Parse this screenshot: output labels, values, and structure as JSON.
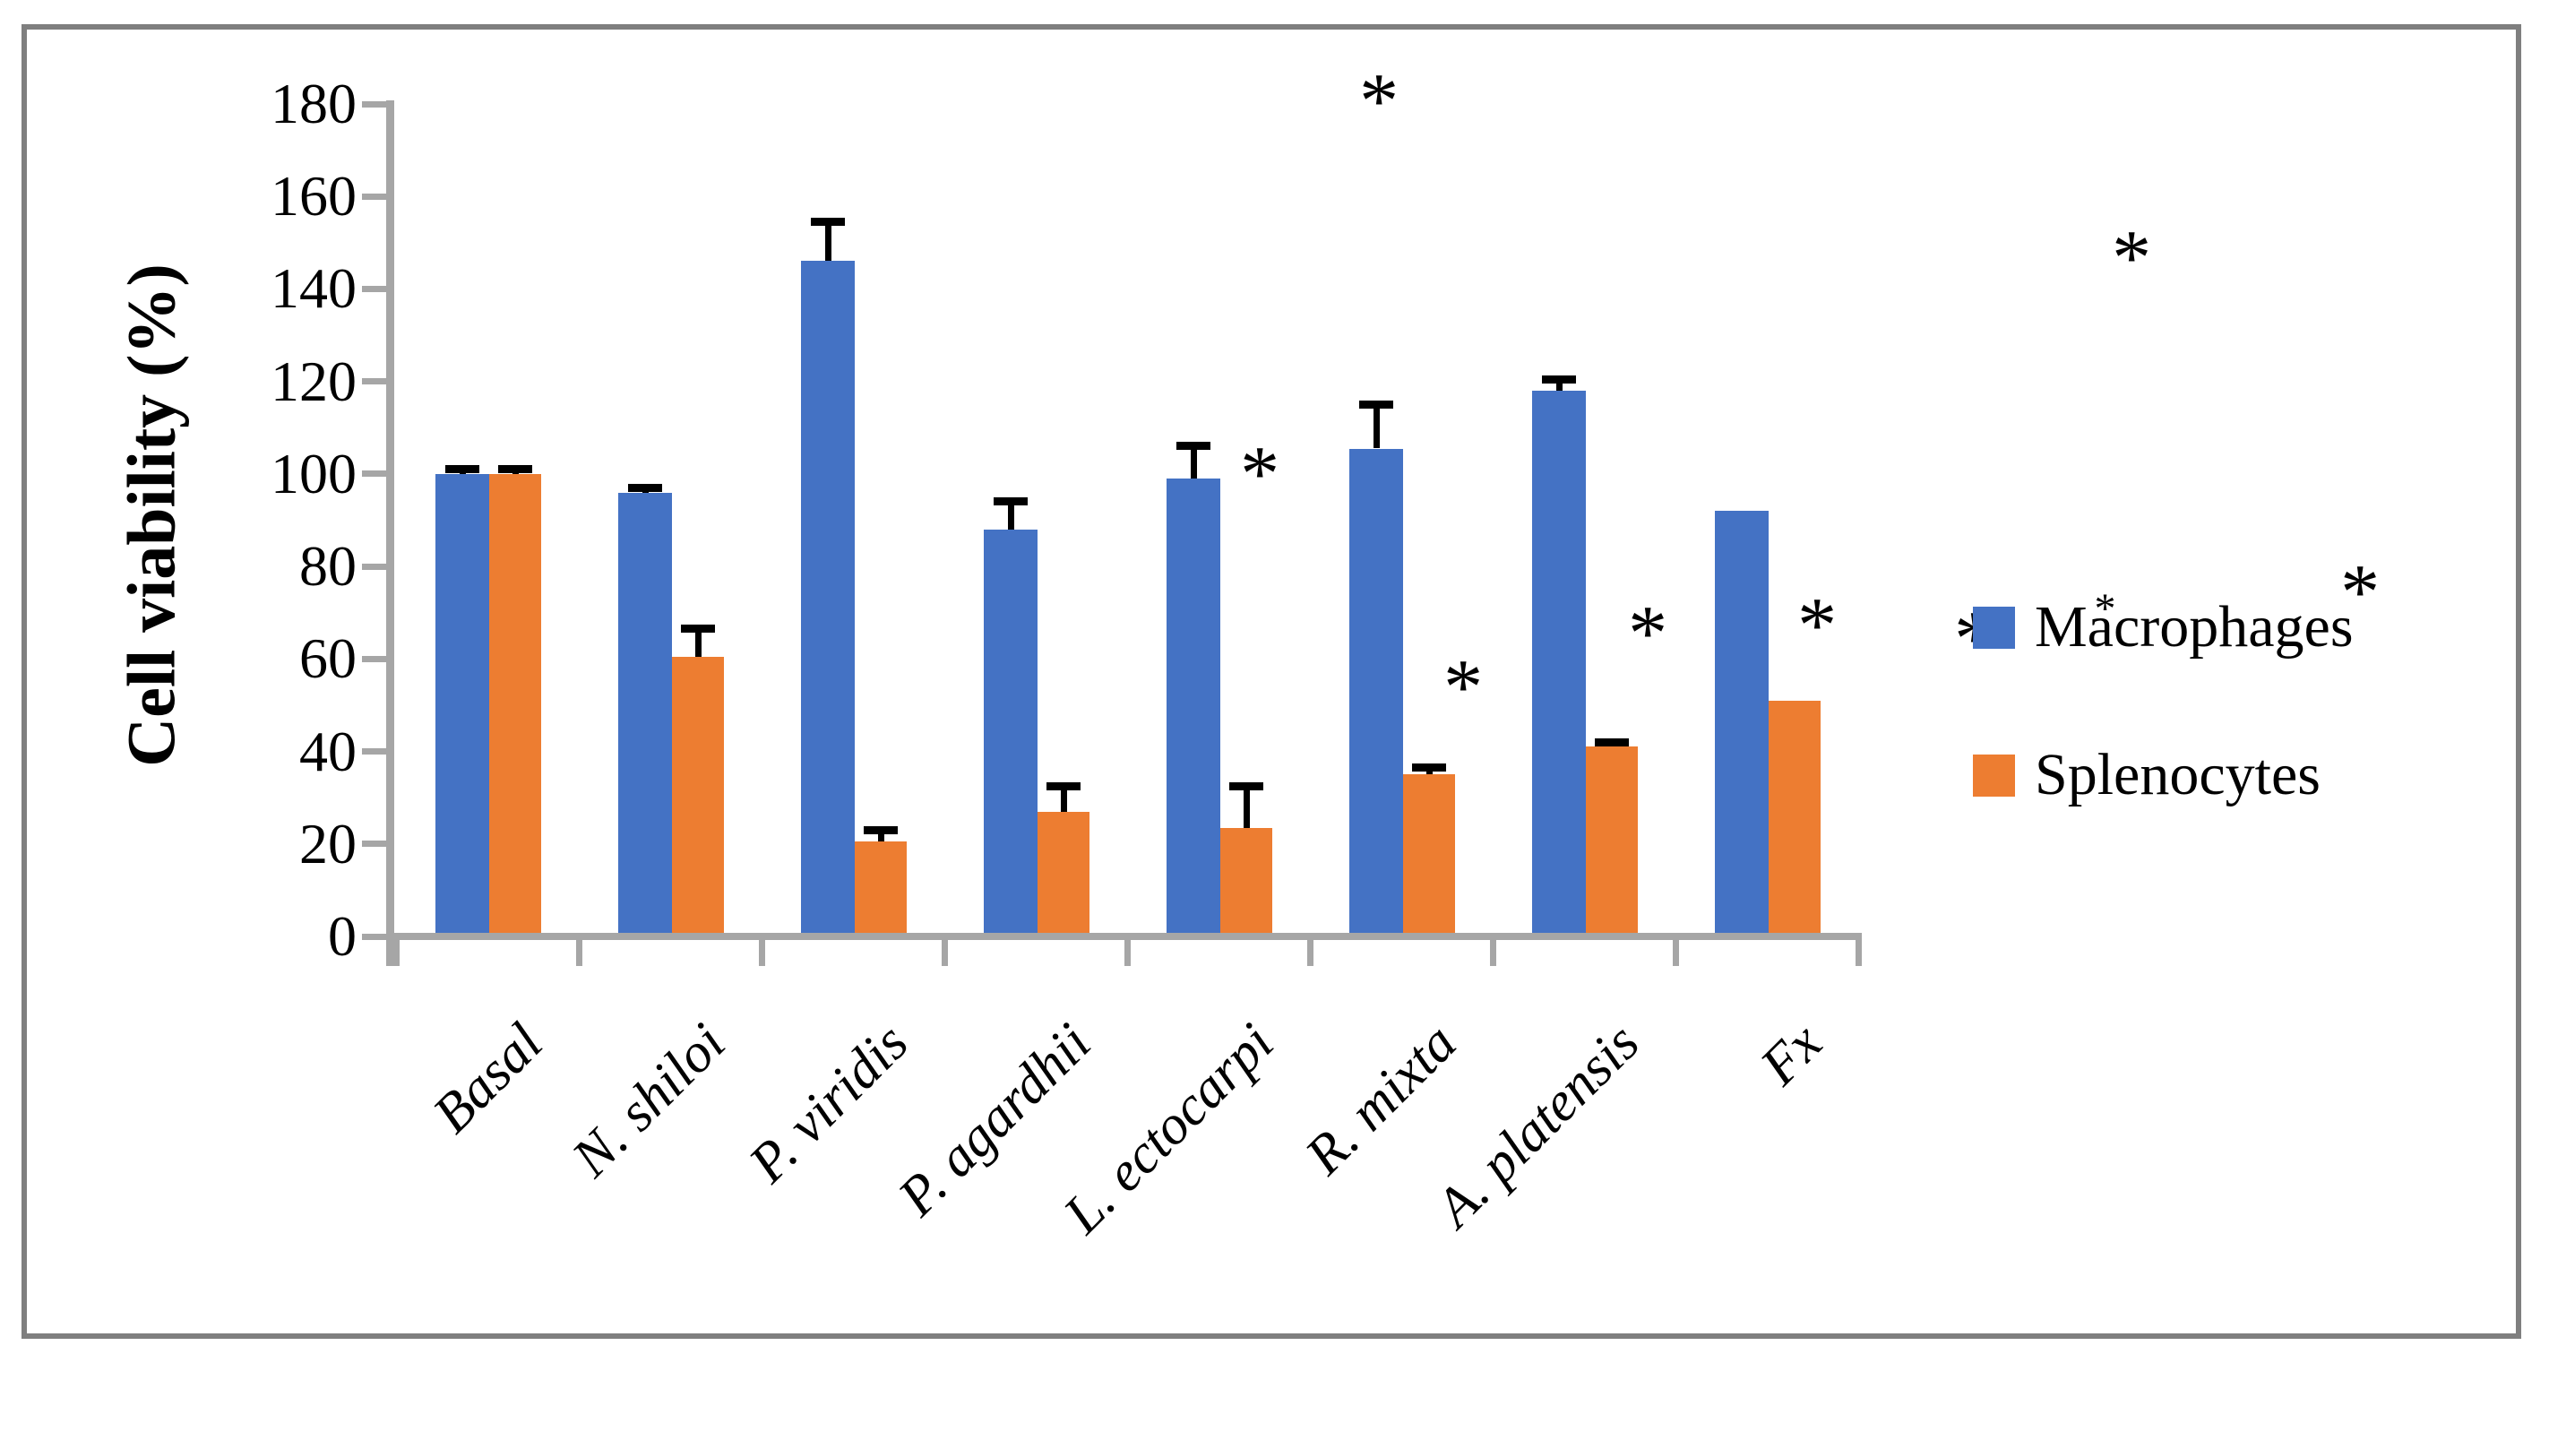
{
  "figure": {
    "background": "#ffffff",
    "border_color": "#7f7f7f"
  },
  "chart_data": {
    "type": "bar",
    "title": "",
    "xlabel": "",
    "ylabel": "Cell viability (%)",
    "ylim": [
      0,
      180
    ],
    "yticks": [
      0,
      20,
      40,
      60,
      80,
      100,
      120,
      140,
      160,
      180
    ],
    "grid": false,
    "legend_position": "right",
    "axis_color": "#a6a6a6",
    "error_bar_color": "#000000",
    "categories": [
      "Basal",
      "N. shiloi",
      "P. viridis",
      "P. agardhii",
      "L. ectocarpi",
      "R. mixta",
      "A. platensis",
      "Fx"
    ],
    "series": [
      {
        "name": "Macrophages",
        "color": "#4472c4",
        "values": [
          100,
          96,
          146,
          88,
          99,
          105.5,
          118,
          92
        ],
        "errors_plus": [
          1,
          1,
          8.5,
          6,
          7,
          9.5,
          2.5,
          0
        ]
      },
      {
        "name": "Splenocytes",
        "color": "#ed7d31",
        "values": [
          100,
          60.5,
          20.5,
          27,
          23.5,
          35,
          41,
          51
        ],
        "errors_plus": [
          1,
          6,
          2.5,
          5.5,
          9,
          1.5,
          1,
          0
        ]
      }
    ],
    "significance_markers": [
      {
        "label": "*",
        "x": 1540,
        "y": 100,
        "size": "large",
        "note": "above R. mixta Macrophages bar"
      },
      {
        "label": "*",
        "x": 1407,
        "y": 516,
        "size": "large",
        "note": "beside L. ectocarpi Macrophages bar"
      },
      {
        "label": "*",
        "x": 1634,
        "y": 754,
        "size": "large",
        "note": "beside R. mixta Splenocytes bar"
      },
      {
        "label": "*",
        "x": 1840,
        "y": 694,
        "size": "large",
        "note": "beside A. platensis Splenocytes bar"
      },
      {
        "label": "*",
        "x": 2029,
        "y": 685,
        "size": "large",
        "note": "beside Fx Splenocytes bar"
      },
      {
        "label": "*",
        "x": 2380,
        "y": 275,
        "size": "large",
        "note": "upper right area"
      },
      {
        "label": "*",
        "x": 2635,
        "y": 648,
        "size": "large",
        "note": "above end of Macrophages legend label"
      },
      {
        "label": "*",
        "x": 2204,
        "y": 700,
        "size": "large",
        "note": "on Macrophages legend key"
      },
      {
        "label": "*",
        "x": 2350,
        "y": 672,
        "size": "small",
        "note": "on Macrophages legend text"
      }
    ]
  }
}
